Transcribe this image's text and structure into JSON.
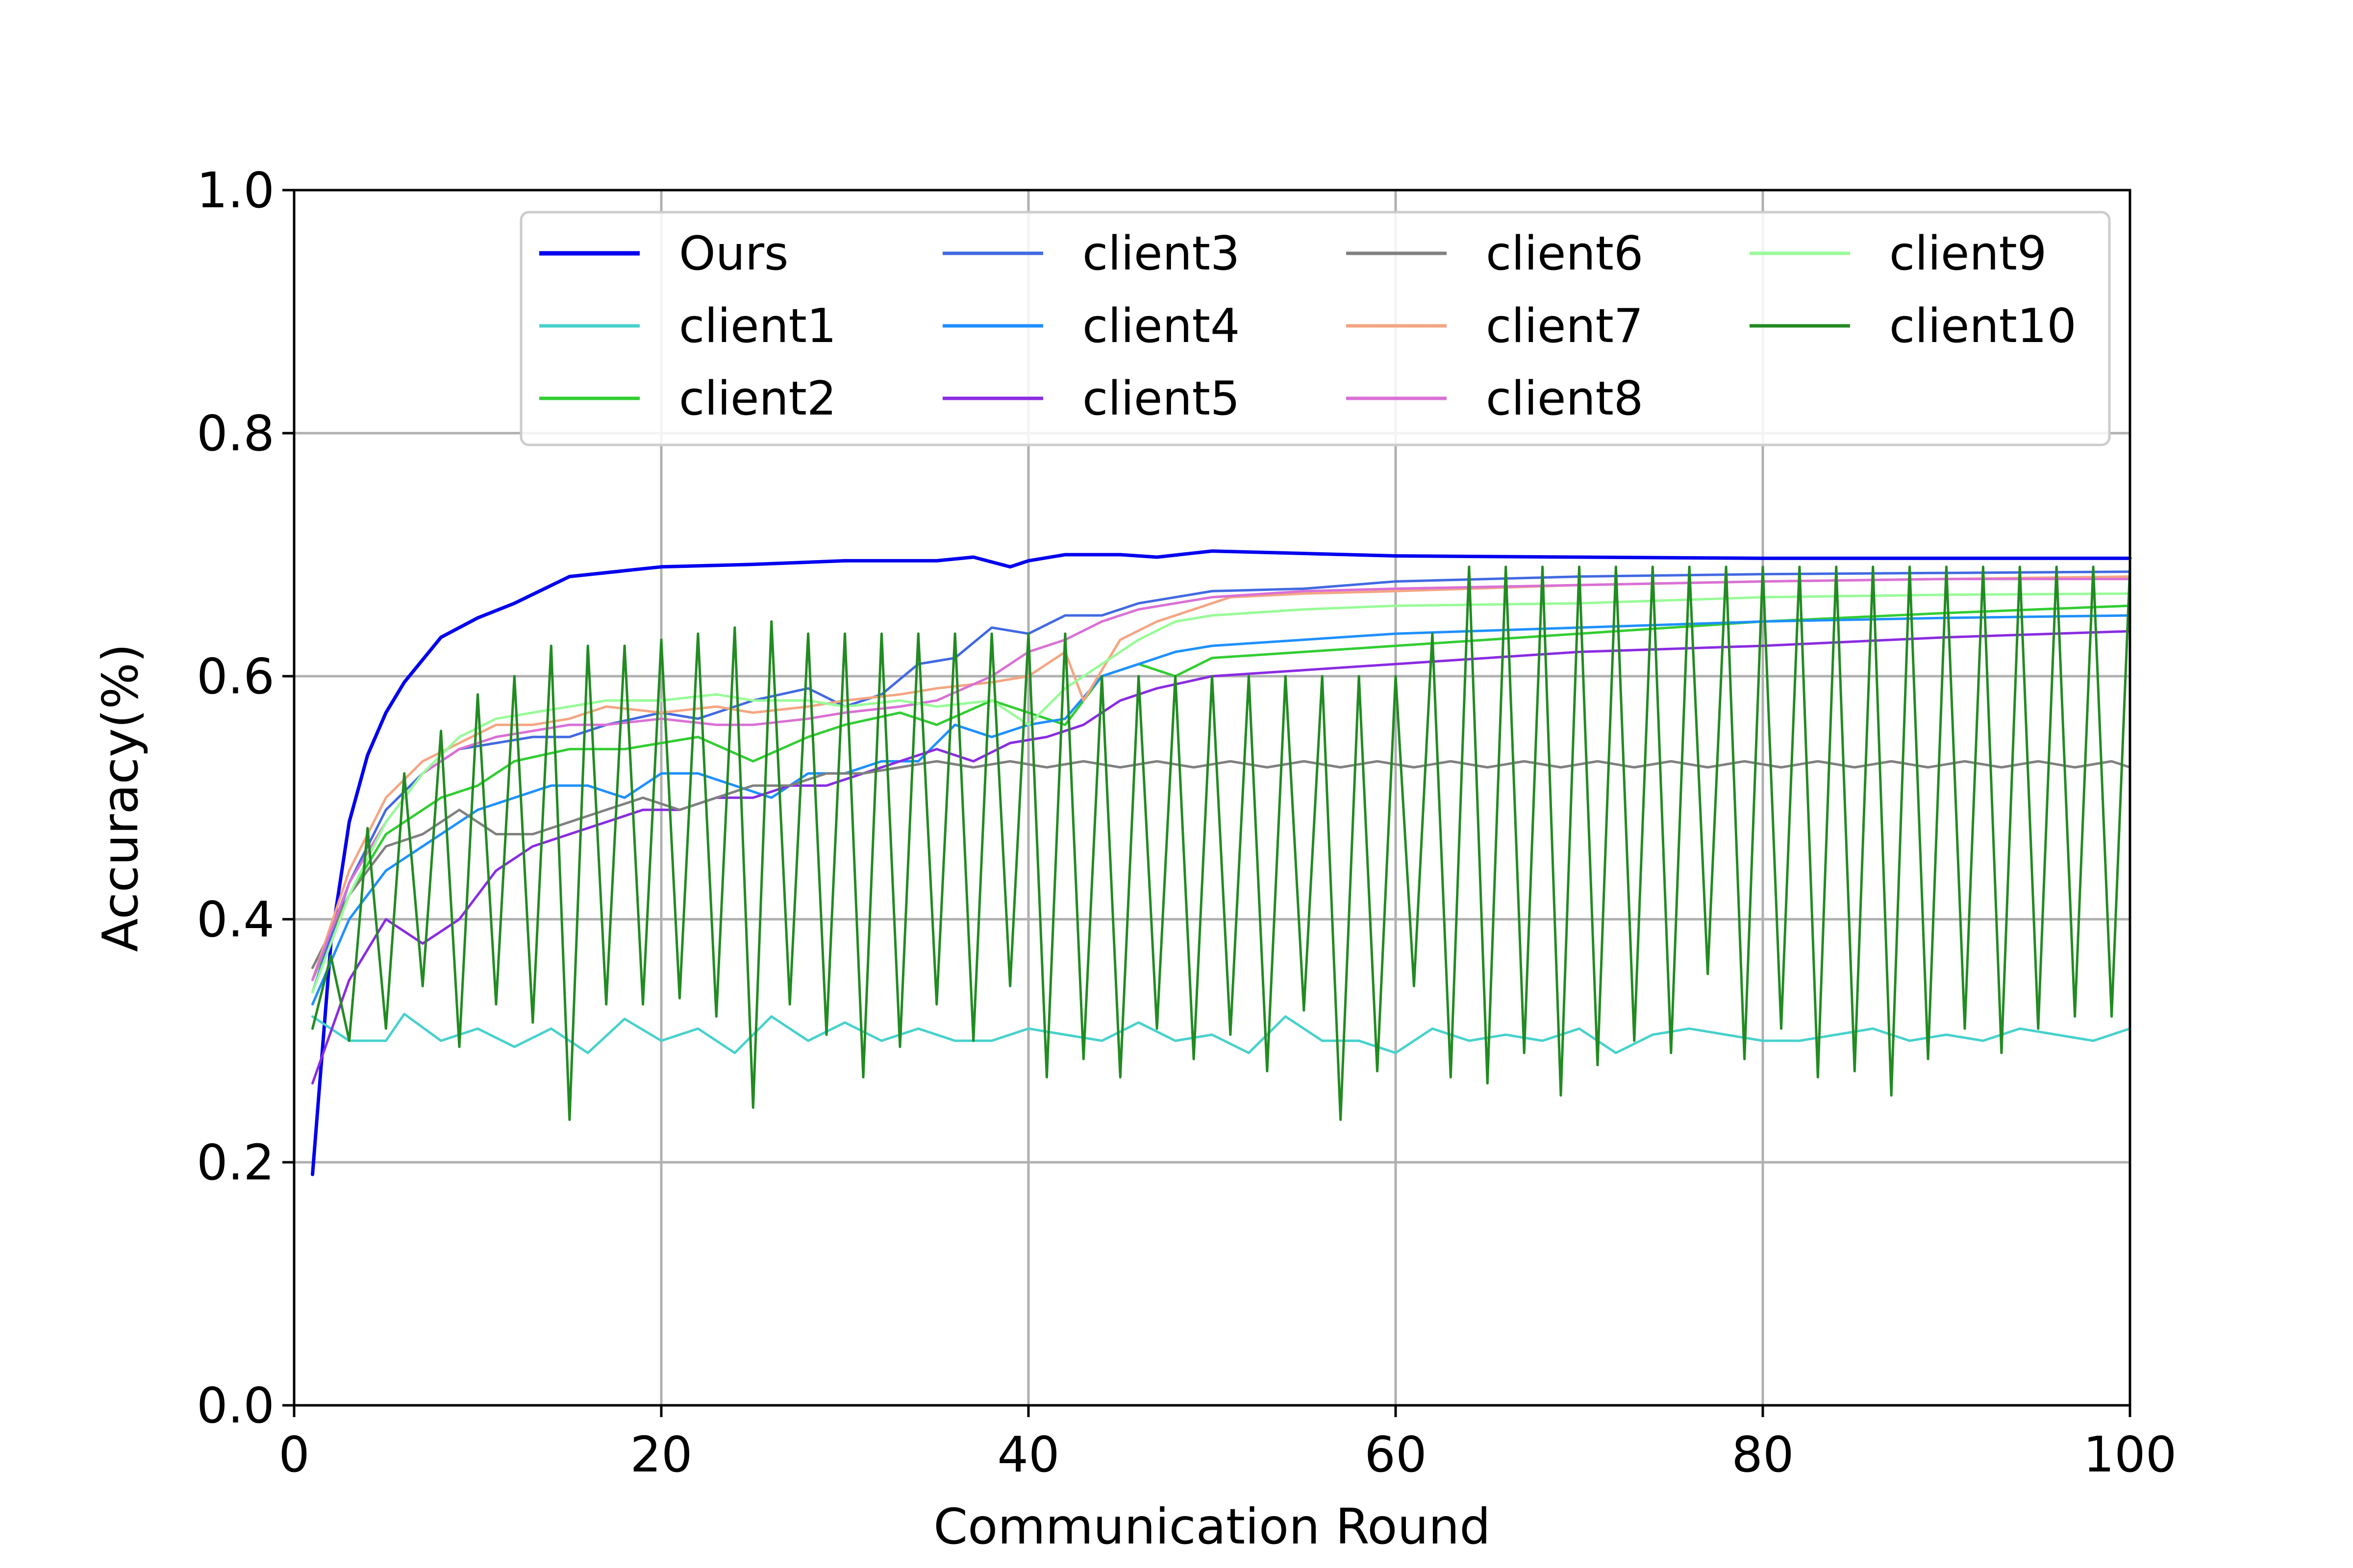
{
  "chart_data": {
    "type": "line",
    "title": "",
    "xlabel": "Communication Round",
    "ylabel": "Accuracy(%)",
    "xlim": [
      0,
      100
    ],
    "ylim": [
      0.0,
      1.0
    ],
    "xticks": [
      "0",
      "20",
      "40",
      "60",
      "80",
      "100"
    ],
    "yticks": [
      "0.0",
      "0.2",
      "0.4",
      "0.6",
      "0.8",
      "1.0"
    ],
    "grid": true,
    "legend": {
      "placement": "upper center",
      "columns": 4
    },
    "series": [
      {
        "name": "Ours",
        "color": "#0000ee",
        "width": 7,
        "x": [
          1,
          2,
          3,
          4,
          5,
          6,
          8,
          10,
          12,
          15,
          20,
          25,
          30,
          35,
          37,
          39,
          40,
          42,
          45,
          47,
          50,
          55,
          60,
          70,
          80,
          90,
          100
        ],
        "y": [
          0.19,
          0.38,
          0.48,
          0.535,
          0.57,
          0.595,
          0.632,
          0.648,
          0.66,
          0.682,
          0.69,
          0.692,
          0.695,
          0.695,
          0.698,
          0.69,
          0.695,
          0.7,
          0.7,
          0.698,
          0.703,
          0.701,
          0.699,
          0.698,
          0.697,
          0.697,
          0.697
        ]
      },
      {
        "name": "client1",
        "color": "#48d1cc",
        "width": 5,
        "x": [
          1,
          3,
          5,
          6,
          8,
          10,
          12,
          14,
          16,
          18,
          20,
          22,
          24,
          26,
          28,
          30,
          32,
          34,
          36,
          38,
          40,
          42,
          44,
          46,
          48,
          50,
          52,
          54,
          56,
          58,
          60,
          62,
          64,
          66,
          68,
          70,
          72,
          74,
          76,
          78,
          80,
          82,
          84,
          86,
          88,
          90,
          92,
          94,
          96,
          98,
          100
        ],
        "y": [
          0.32,
          0.3,
          0.3,
          0.322,
          0.3,
          0.31,
          0.295,
          0.31,
          0.29,
          0.318,
          0.3,
          0.31,
          0.29,
          0.32,
          0.3,
          0.315,
          0.3,
          0.31,
          0.3,
          0.3,
          0.31,
          0.305,
          0.3,
          0.315,
          0.3,
          0.305,
          0.29,
          0.32,
          0.3,
          0.3,
          0.29,
          0.31,
          0.3,
          0.305,
          0.3,
          0.31,
          0.29,
          0.305,
          0.31,
          0.305,
          0.3,
          0.3,
          0.305,
          0.31,
          0.3,
          0.305,
          0.3,
          0.31,
          0.305,
          0.3,
          0.31
        ]
      },
      {
        "name": "client2",
        "color": "#32cd32",
        "width": 5,
        "x": [
          1,
          3,
          5,
          8,
          10,
          12,
          15,
          18,
          20,
          22,
          25,
          28,
          30,
          33,
          35,
          38,
          40,
          42,
          44,
          46,
          48,
          50,
          55,
          60,
          70,
          80,
          90,
          100
        ],
        "y": [
          0.35,
          0.42,
          0.47,
          0.5,
          0.51,
          0.53,
          0.54,
          0.54,
          0.545,
          0.55,
          0.53,
          0.55,
          0.56,
          0.57,
          0.56,
          0.58,
          0.57,
          0.56,
          0.6,
          0.61,
          0.6,
          0.615,
          0.62,
          0.625,
          0.635,
          0.645,
          0.652,
          0.658
        ]
      },
      {
        "name": "client3",
        "color": "#4169e1",
        "width": 5,
        "x": [
          1,
          3,
          5,
          7,
          9,
          11,
          13,
          15,
          17,
          20,
          22,
          25,
          28,
          30,
          32,
          34,
          36,
          38,
          40,
          42,
          44,
          46,
          48,
          50,
          55,
          60,
          70,
          80,
          90,
          100
        ],
        "y": [
          0.34,
          0.43,
          0.49,
          0.52,
          0.54,
          0.545,
          0.55,
          0.55,
          0.56,
          0.57,
          0.565,
          0.58,
          0.59,
          0.575,
          0.585,
          0.61,
          0.615,
          0.64,
          0.635,
          0.65,
          0.65,
          0.66,
          0.665,
          0.67,
          0.672,
          0.678,
          0.682,
          0.684,
          0.685,
          0.686
        ]
      },
      {
        "name": "client4",
        "color": "#1e90ff",
        "width": 5,
        "x": [
          1,
          3,
          5,
          8,
          10,
          12,
          14,
          16,
          18,
          20,
          22,
          24,
          26,
          28,
          30,
          32,
          34,
          36,
          38,
          40,
          42,
          44,
          46,
          48,
          50,
          55,
          60,
          70,
          80,
          90,
          100
        ],
        "y": [
          0.33,
          0.4,
          0.44,
          0.47,
          0.49,
          0.5,
          0.51,
          0.51,
          0.5,
          0.52,
          0.52,
          0.51,
          0.5,
          0.52,
          0.52,
          0.53,
          0.53,
          0.56,
          0.55,
          0.56,
          0.565,
          0.6,
          0.61,
          0.62,
          0.625,
          0.63,
          0.635,
          0.64,
          0.645,
          0.648,
          0.65
        ]
      },
      {
        "name": "client5",
        "color": "#8a2be2",
        "width": 5,
        "x": [
          1,
          3,
          5,
          7,
          9,
          11,
          13,
          15,
          17,
          19,
          21,
          23,
          25,
          27,
          29,
          31,
          33,
          35,
          37,
          39,
          41,
          43,
          45,
          47,
          50,
          55,
          60,
          70,
          80,
          90,
          100
        ],
        "y": [
          0.265,
          0.35,
          0.4,
          0.38,
          0.4,
          0.44,
          0.46,
          0.47,
          0.48,
          0.49,
          0.49,
          0.5,
          0.5,
          0.51,
          0.51,
          0.52,
          0.53,
          0.54,
          0.53,
          0.545,
          0.55,
          0.56,
          0.58,
          0.59,
          0.6,
          0.605,
          0.61,
          0.62,
          0.625,
          0.632,
          0.637
        ]
      },
      {
        "name": "client6",
        "color": "#808080",
        "width": 5,
        "x": [
          1,
          3,
          5,
          7,
          9,
          11,
          13,
          15,
          17,
          19,
          21,
          23,
          25,
          27,
          29,
          31,
          33,
          35,
          37,
          39,
          41,
          43,
          45,
          47,
          49,
          51,
          53,
          55,
          57,
          59,
          61,
          63,
          65,
          67,
          69,
          71,
          73,
          75,
          77,
          79,
          81,
          83,
          85,
          87,
          89,
          91,
          93,
          95,
          97,
          99,
          100
        ],
        "y": [
          0.36,
          0.42,
          0.46,
          0.47,
          0.49,
          0.47,
          0.47,
          0.48,
          0.49,
          0.5,
          0.49,
          0.5,
          0.51,
          0.51,
          0.52,
          0.52,
          0.525,
          0.53,
          0.525,
          0.53,
          0.525,
          0.53,
          0.525,
          0.53,
          0.525,
          0.53,
          0.525,
          0.53,
          0.525,
          0.53,
          0.525,
          0.53,
          0.525,
          0.53,
          0.525,
          0.53,
          0.525,
          0.53,
          0.525,
          0.53,
          0.525,
          0.53,
          0.525,
          0.53,
          0.525,
          0.53,
          0.525,
          0.53,
          0.525,
          0.53,
          0.525
        ]
      },
      {
        "name": "client7",
        "color": "#f4a582",
        "width": 5,
        "x": [
          1,
          3,
          5,
          7,
          9,
          11,
          13,
          15,
          17,
          20,
          23,
          25,
          28,
          30,
          33,
          35,
          38,
          40,
          42,
          43,
          45,
          47,
          49,
          51,
          55,
          60,
          70,
          80,
          90,
          100
        ],
        "y": [
          0.35,
          0.44,
          0.5,
          0.53,
          0.545,
          0.56,
          0.56,
          0.565,
          0.575,
          0.57,
          0.575,
          0.57,
          0.575,
          0.58,
          0.585,
          0.59,
          0.595,
          0.6,
          0.62,
          0.58,
          0.63,
          0.645,
          0.655,
          0.665,
          0.668,
          0.67,
          0.675,
          0.678,
          0.68,
          0.682
        ]
      },
      {
        "name": "client8",
        "color": "#da70d6",
        "width": 5,
        "x": [
          1,
          3,
          5,
          7,
          9,
          11,
          13,
          15,
          17,
          20,
          23,
          25,
          28,
          30,
          33,
          35,
          38,
          40,
          42,
          44,
          46,
          48,
          50,
          55,
          60,
          70,
          80,
          90,
          100
        ],
        "y": [
          0.35,
          0.43,
          0.48,
          0.52,
          0.54,
          0.55,
          0.555,
          0.56,
          0.56,
          0.565,
          0.56,
          0.56,
          0.565,
          0.57,
          0.575,
          0.58,
          0.6,
          0.62,
          0.63,
          0.645,
          0.655,
          0.66,
          0.665,
          0.67,
          0.672,
          0.675,
          0.678,
          0.68,
          0.68
        ]
      },
      {
        "name": "client9",
        "color": "#98fb98",
        "width": 5,
        "x": [
          1,
          3,
          5,
          7,
          9,
          11,
          13,
          15,
          17,
          20,
          23,
          25,
          28,
          30,
          33,
          35,
          38,
          40,
          42,
          44,
          46,
          48,
          50,
          55,
          60,
          70,
          80,
          90,
          100
        ],
        "y": [
          0.34,
          0.42,
          0.48,
          0.52,
          0.55,
          0.565,
          0.57,
          0.575,
          0.58,
          0.58,
          0.585,
          0.58,
          0.58,
          0.575,
          0.58,
          0.575,
          0.58,
          0.56,
          0.59,
          0.61,
          0.63,
          0.645,
          0.65,
          0.655,
          0.658,
          0.66,
          0.665,
          0.667,
          0.668
        ]
      },
      {
        "name": "client10",
        "color": "#228b22",
        "width": 5,
        "x": [
          1,
          2,
          3,
          4,
          5,
          6,
          7,
          8,
          9,
          10,
          11,
          12,
          13,
          14,
          15,
          16,
          17,
          18,
          19,
          20,
          21,
          22,
          23,
          24,
          25,
          26,
          27,
          28,
          29,
          30,
          31,
          32,
          33,
          34,
          35,
          36,
          37,
          38,
          39,
          40,
          41,
          42,
          43,
          44,
          45,
          46,
          47,
          48,
          49,
          50,
          51,
          52,
          53,
          54,
          55,
          56,
          57,
          58,
          59,
          60,
          61,
          62,
          63,
          64,
          65,
          66,
          67,
          68,
          69,
          70,
          71,
          72,
          73,
          74,
          75,
          76,
          77,
          78,
          79,
          80,
          81,
          82,
          83,
          84,
          85,
          86,
          87,
          88,
          89,
          90,
          91,
          92,
          93,
          94,
          95,
          96,
          97,
          98,
          99,
          100
        ],
        "y": [
          0.31,
          0.37,
          0.3,
          0.475,
          0.31,
          0.52,
          0.345,
          0.555,
          0.295,
          0.585,
          0.33,
          0.6,
          0.315,
          0.625,
          0.235,
          0.625,
          0.33,
          0.625,
          0.33,
          0.63,
          0.335,
          0.635,
          0.32,
          0.64,
          0.245,
          0.645,
          0.33,
          0.635,
          0.305,
          0.635,
          0.27,
          0.635,
          0.295,
          0.635,
          0.33,
          0.635,
          0.3,
          0.635,
          0.345,
          0.635,
          0.27,
          0.635,
          0.285,
          0.6,
          0.27,
          0.6,
          0.31,
          0.6,
          0.285,
          0.6,
          0.305,
          0.6,
          0.275,
          0.6,
          0.325,
          0.6,
          0.235,
          0.6,
          0.275,
          0.6,
          0.345,
          0.635,
          0.27,
          0.69,
          0.265,
          0.69,
          0.29,
          0.69,
          0.255,
          0.69,
          0.28,
          0.69,
          0.3,
          0.69,
          0.29,
          0.69,
          0.355,
          0.69,
          0.285,
          0.69,
          0.31,
          0.69,
          0.27,
          0.69,
          0.275,
          0.69,
          0.255,
          0.69,
          0.285,
          0.69,
          0.31,
          0.69,
          0.29,
          0.69,
          0.31,
          0.69,
          0.32,
          0.69,
          0.32,
          0.69
        ]
      }
    ]
  }
}
